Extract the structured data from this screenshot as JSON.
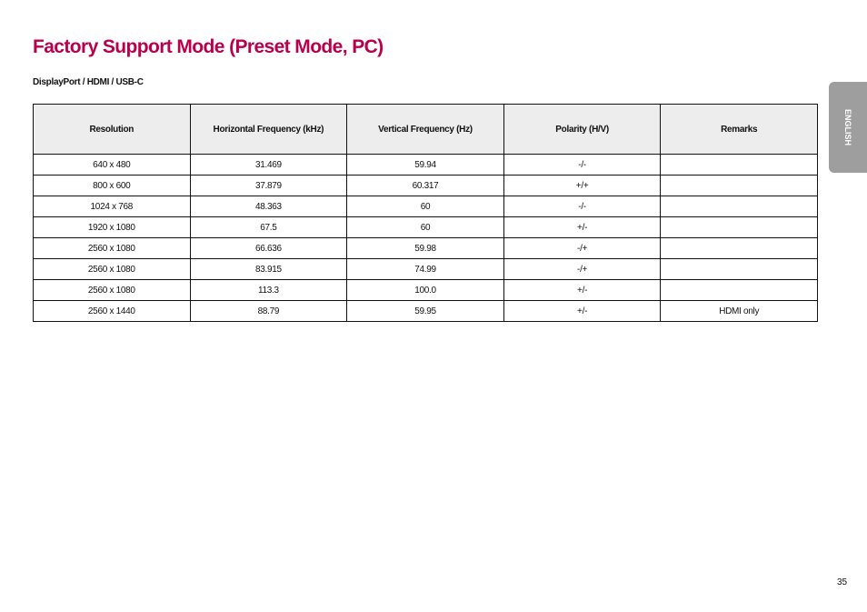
{
  "title": "Factory Support Mode (Preset Mode, PC)",
  "subtitle": "DisplayPort / HDMI / USB-C",
  "table": {
    "headers": [
      "Resolution",
      "Horizontal Frequency (kHz)",
      "Vertical Frequency (Hz)",
      "Polarity (H/V)",
      "Remarks"
    ],
    "rows": [
      [
        "640 x 480",
        "31.469",
        "59.94",
        "-/-",
        ""
      ],
      [
        "800 x 600",
        "37.879",
        "60.317",
        "+/+",
        ""
      ],
      [
        "1024 x 768",
        "48.363",
        "60",
        "-/-",
        ""
      ],
      [
        "1920 x 1080",
        "67.5",
        "60",
        "+/-",
        ""
      ],
      [
        "2560 x 1080",
        "66.636",
        "59.98",
        "-/+",
        ""
      ],
      [
        "2560 x 1080",
        "83.915",
        "74.99",
        "-/+",
        ""
      ],
      [
        "2560 x 1080",
        "113.3",
        "100.0",
        "+/-",
        ""
      ],
      [
        "2560 x 1440",
        "88.79",
        "59.95",
        "+/-",
        "HDMI only"
      ]
    ]
  },
  "language_tab": "ENGLISH",
  "page_number": "35",
  "colors": {
    "title": "#b8004d",
    "tab": "#9e9e9e",
    "header_bg": "#ededed"
  }
}
